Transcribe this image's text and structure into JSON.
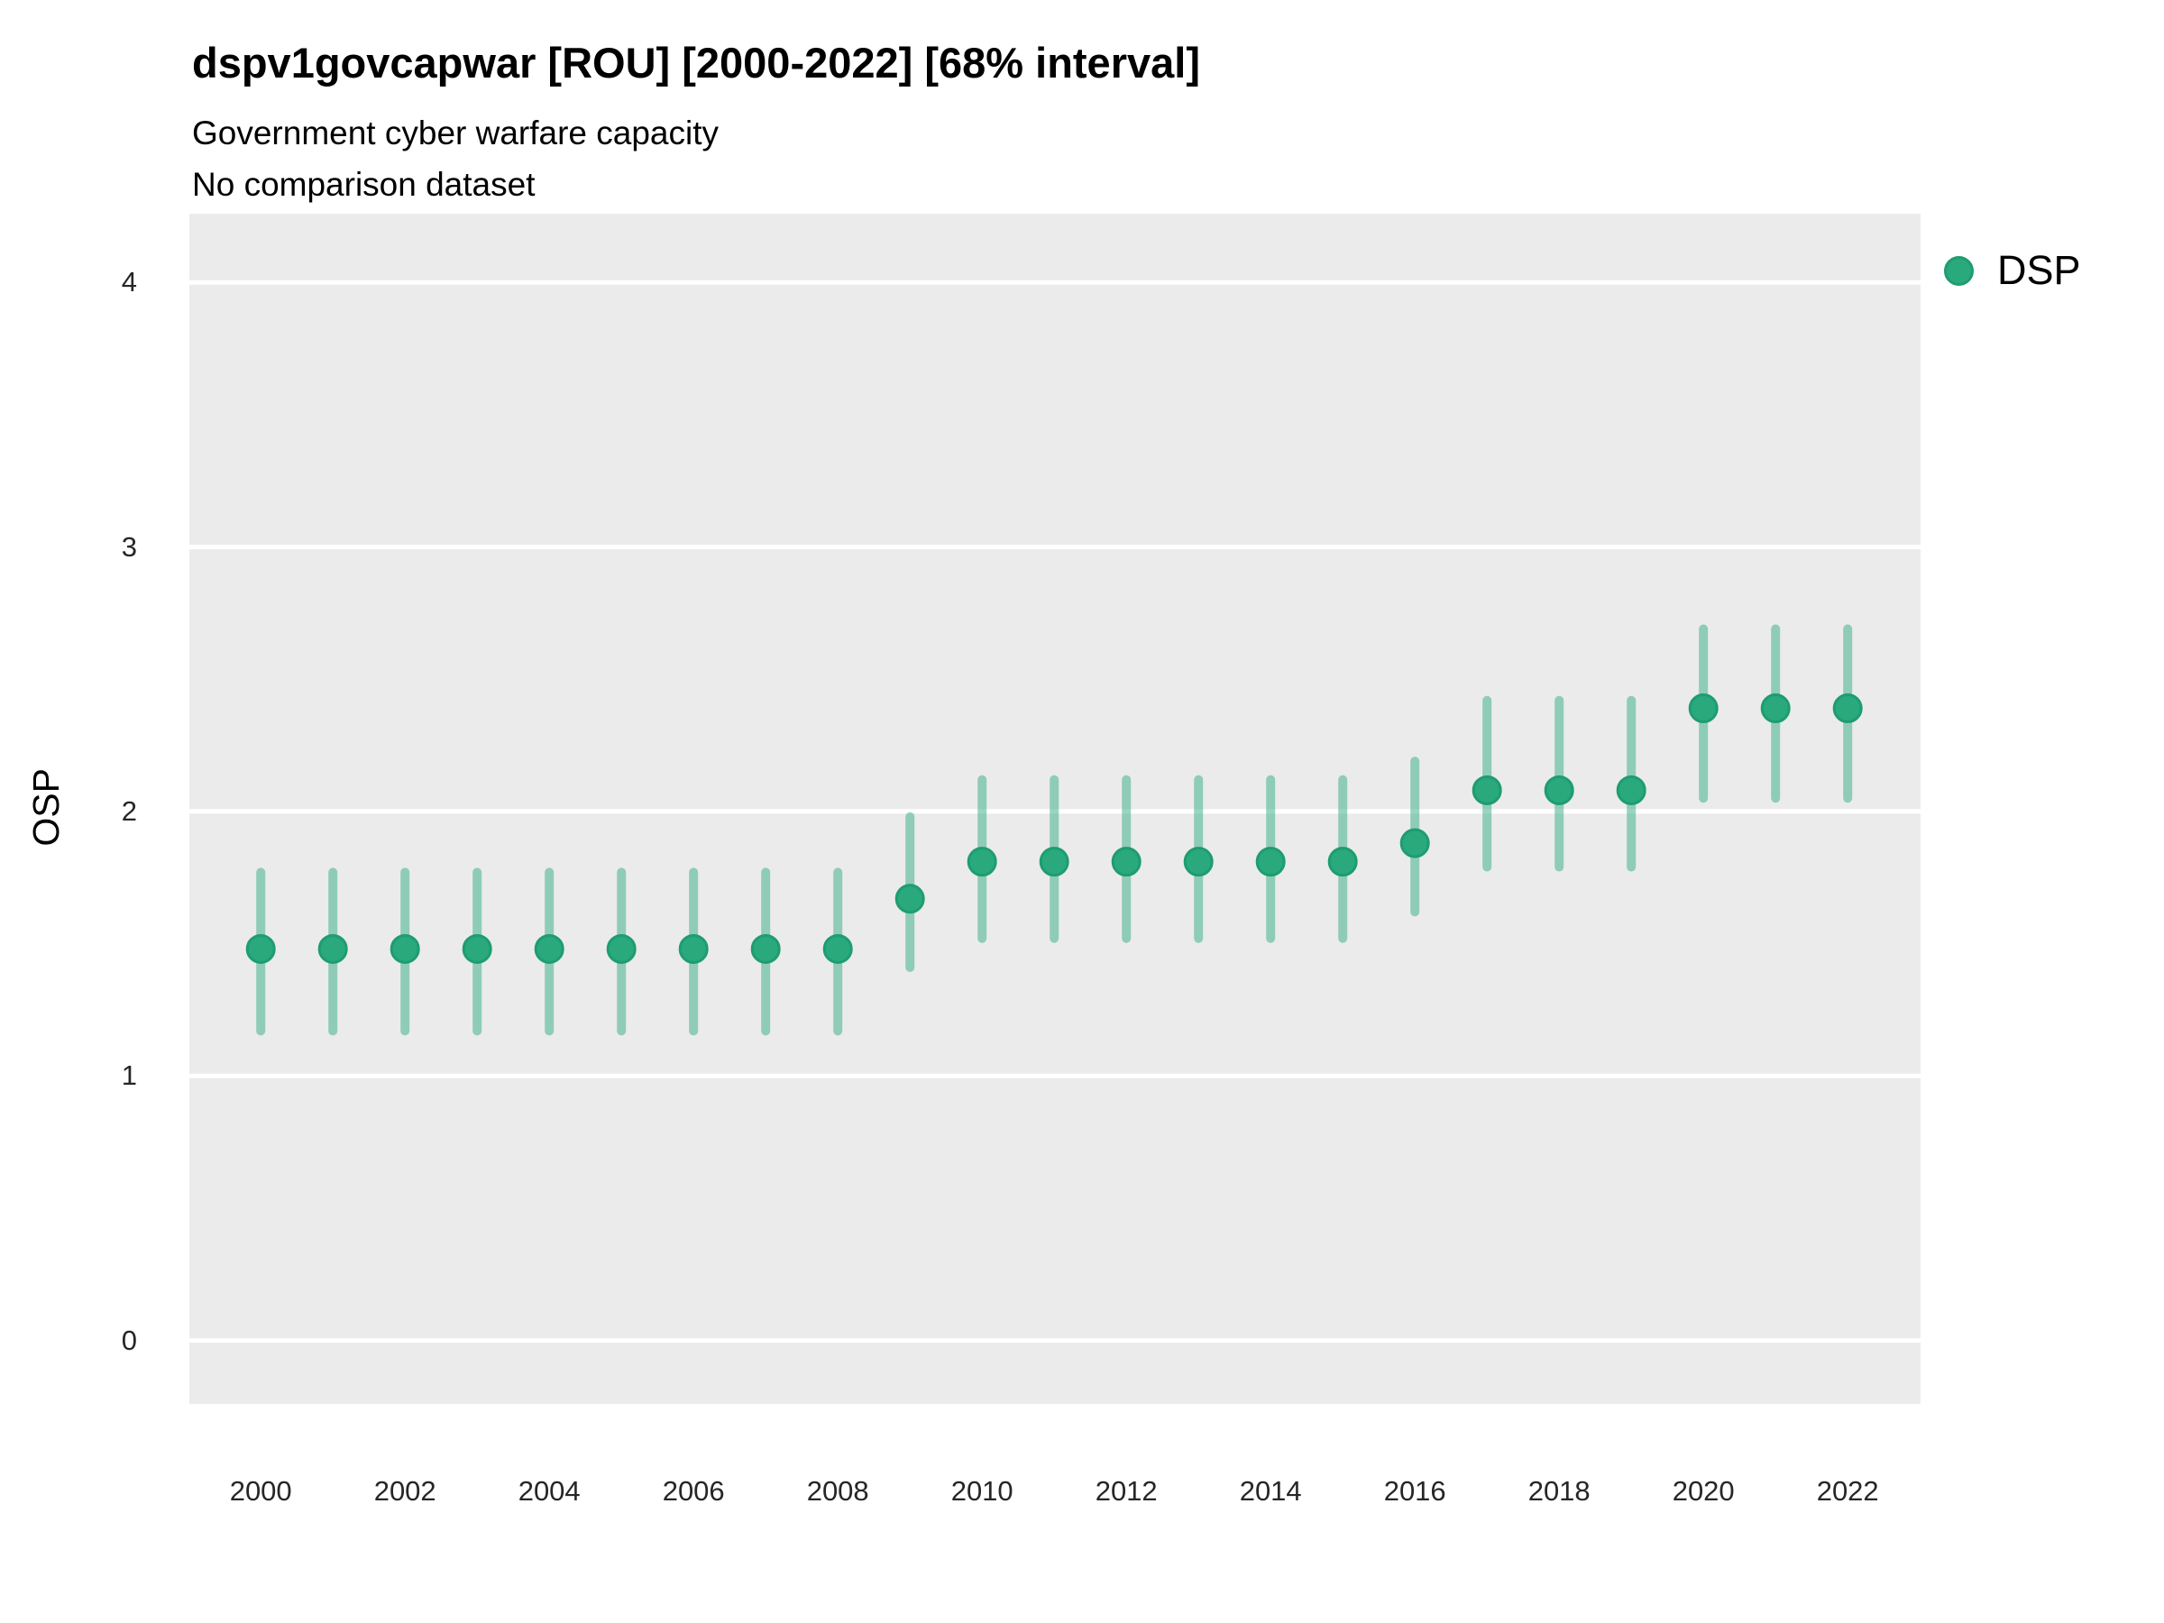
{
  "header": {
    "title": "dspv1govcapwar [ROU] [2000-2022] [68% interval]",
    "subtitle": "Government cyber warfare capacity",
    "comparison_note": "No comparison dataset"
  },
  "axes": {
    "y_title": "OSP",
    "y_tick_labels": [
      "0",
      "1",
      "2",
      "3",
      "4"
    ],
    "x_tick_labels": [
      "2000",
      "2002",
      "2004",
      "2006",
      "2008",
      "2010",
      "2012",
      "2014",
      "2016",
      "2018",
      "2020",
      "2022"
    ]
  },
  "legend": {
    "position": "top-right-outside",
    "items": [
      {
        "label": "DSP",
        "marker": "circle-icon",
        "color": "#2aa97d"
      }
    ]
  },
  "colors": {
    "point_fill": "#2aa97d",
    "point_stroke": "#1e9c72",
    "interval_stroke": "#2aa97d",
    "interval_opacity": 0.48,
    "panel_background": "#ebebeb",
    "gridline": "#ffffff",
    "tick_text": "#262626",
    "title_text": "#000000"
  },
  "chart_data": {
    "type": "scatter",
    "subtype": "pointrange",
    "title": "dspv1govcapwar [ROU] [2000-2022] [68% interval]",
    "subtitle": "Government cyber warfare capacity",
    "note": "No comparison dataset",
    "interval_level": "68%",
    "xlabel": "",
    "ylabel": "OSP",
    "x": [
      2000,
      2001,
      2002,
      2003,
      2004,
      2005,
      2006,
      2007,
      2008,
      2009,
      2010,
      2011,
      2012,
      2013,
      2014,
      2015,
      2016,
      2017,
      2018,
      2019,
      2020,
      2021,
      2022
    ],
    "series": [
      {
        "name": "DSP",
        "mid": [
          1.48,
          1.48,
          1.48,
          1.48,
          1.48,
          1.48,
          1.48,
          1.48,
          1.48,
          1.67,
          1.81,
          1.81,
          1.81,
          1.81,
          1.81,
          1.81,
          1.88,
          2.08,
          2.08,
          2.08,
          2.39,
          2.39,
          2.39
        ],
        "lo": [
          1.17,
          1.17,
          1.17,
          1.17,
          1.17,
          1.17,
          1.17,
          1.17,
          1.17,
          1.41,
          1.52,
          1.52,
          1.52,
          1.52,
          1.52,
          1.52,
          1.62,
          1.79,
          1.79,
          1.79,
          2.05,
          2.05,
          2.05
        ],
        "hi": [
          1.77,
          1.77,
          1.77,
          1.77,
          1.77,
          1.77,
          1.77,
          1.77,
          1.77,
          1.98,
          2.12,
          2.12,
          2.12,
          2.12,
          2.12,
          2.12,
          2.19,
          2.42,
          2.42,
          2.42,
          2.69,
          2.69,
          2.69
        ]
      }
    ],
    "xlim": [
      1999.01,
      2023.01
    ],
    "ylim": [
      -0.24,
      4.26
    ],
    "y_ticks": [
      0,
      1,
      2,
      3,
      4
    ],
    "x_ticks": [
      2000,
      2002,
      2004,
      2006,
      2008,
      2010,
      2012,
      2014,
      2016,
      2018,
      2020,
      2022
    ],
    "grid": "horizontal-major-only",
    "legend_position": "top-right-outside"
  }
}
